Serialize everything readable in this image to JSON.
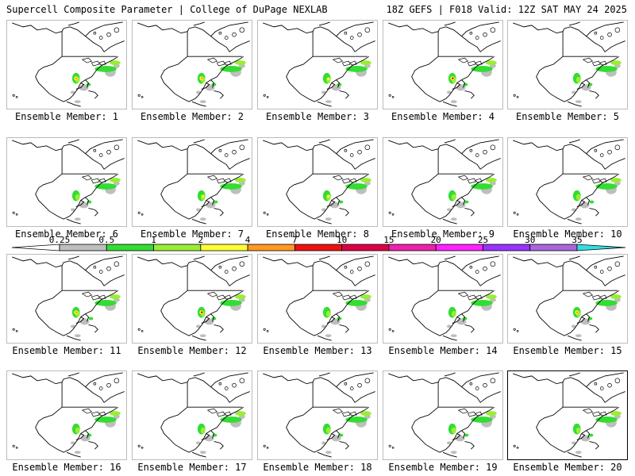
{
  "header": {
    "left": "Supercell Composite Parameter | College of DuPage NEXLAB",
    "right": "18Z GEFS | F018 Valid: 12Z SAT MAY 24 2025"
  },
  "panels": [
    {
      "label": "Ensemble Member: 1"
    },
    {
      "label": "Ensemble Member: 2"
    },
    {
      "label": "Ensemble Member: 3"
    },
    {
      "label": "Ensemble Member: 4"
    },
    {
      "label": "Ensemble Member: 5"
    },
    {
      "label": "Ensemble Member: 6"
    },
    {
      "label": "Ensemble Member: 7"
    },
    {
      "label": "Ensemble Member: 8"
    },
    {
      "label": "Ensemble Member: 9"
    },
    {
      "label": "Ensemble Member: 10"
    },
    {
      "label": "Ensemble Member: 11"
    },
    {
      "label": "Ensemble Member: 12"
    },
    {
      "label": "Ensemble Member: 13"
    },
    {
      "label": "Ensemble Member: 14"
    },
    {
      "label": "Ensemble Member: 15"
    },
    {
      "label": "Ensemble Member: 16"
    },
    {
      "label": "Ensemble Member: 17"
    },
    {
      "label": "Ensemble Member: 18"
    },
    {
      "label": "Ensemble Member: 19"
    },
    {
      "label": "Ensemble Member: 20"
    }
  ],
  "colorbar": {
    "ticks": [
      "0.25",
      "0.5",
      "1",
      "2",
      "4",
      "7",
      "10",
      "15",
      "20",
      "25",
      "30",
      "35"
    ],
    "colors": [
      "#bebebe",
      "#33dd33",
      "#99ee33",
      "#ffff33",
      "#ff9922",
      "#ee1111",
      "#dd0044",
      "#ee22aa",
      "#ff22ff",
      "#9933ff",
      "#aa66dd",
      "#33dddd"
    ],
    "below_color": "#ffffff"
  },
  "map_colors": {
    "outline": "#000000",
    "light": "#bebebe",
    "green": "#33dd33",
    "lime": "#99ee33",
    "yellow": "#ffff33",
    "orange": "#ff9922",
    "red": "#ee1111"
  }
}
